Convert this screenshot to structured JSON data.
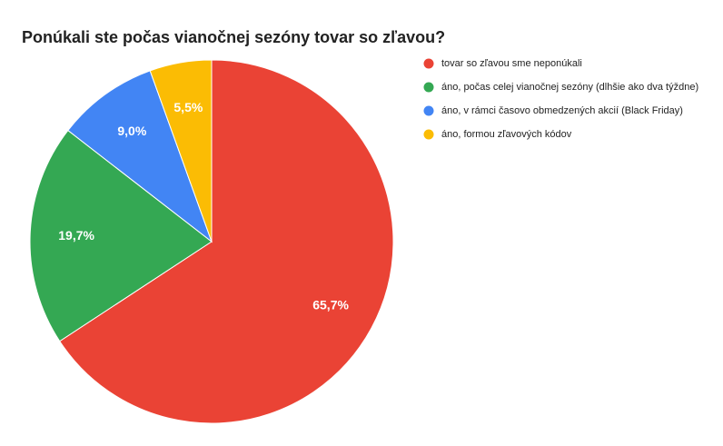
{
  "chart_data": {
    "type": "pie",
    "title": "Ponúkali ste počas vianočnej sezóny tovar so zľavou?",
    "categories": [
      "tovar so zľavou sme neponúkali",
      "áno, počas celej vianočnej sezóny (dlhšie ako dva týždne)",
      "áno, v rámci časovo obmedzených akcií (Black Friday)",
      "áno, formou zľavových kódov"
    ],
    "values": [
      65.7,
      19.7,
      9.0,
      5.5
    ],
    "value_labels": [
      "65,7%",
      "19,7%",
      "9,0%",
      "5,5%"
    ],
    "colors": [
      "#ea4335",
      "#34a853",
      "#4285f4",
      "#fbbc04"
    ],
    "legend": "right"
  }
}
